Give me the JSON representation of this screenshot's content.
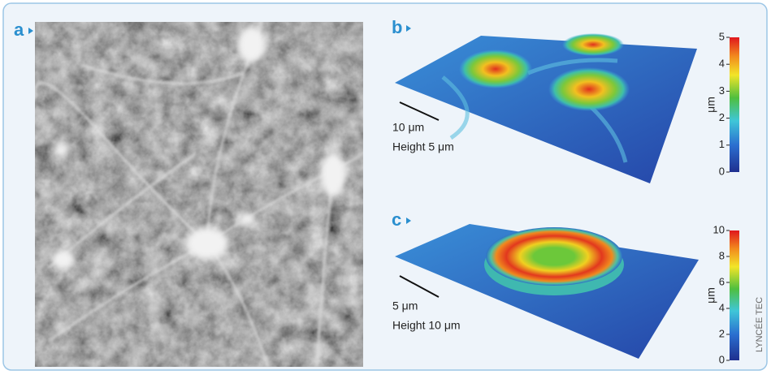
{
  "panels": [
    {
      "label": "a"
    },
    {
      "label": "b",
      "scale_bar": "10 μm",
      "height": "Height 5 μm",
      "colorbar": {
        "unit": "μm",
        "ticks": [
          0,
          1,
          2,
          3,
          4,
          5
        ]
      }
    },
    {
      "label": "c",
      "scale_bar": "5 μm",
      "height": "Height 10 μm",
      "colorbar": {
        "unit": "μm",
        "ticks": [
          0,
          2,
          4,
          6,
          8,
          10
        ]
      }
    }
  ],
  "credit": "LYNCÉE TEC"
}
